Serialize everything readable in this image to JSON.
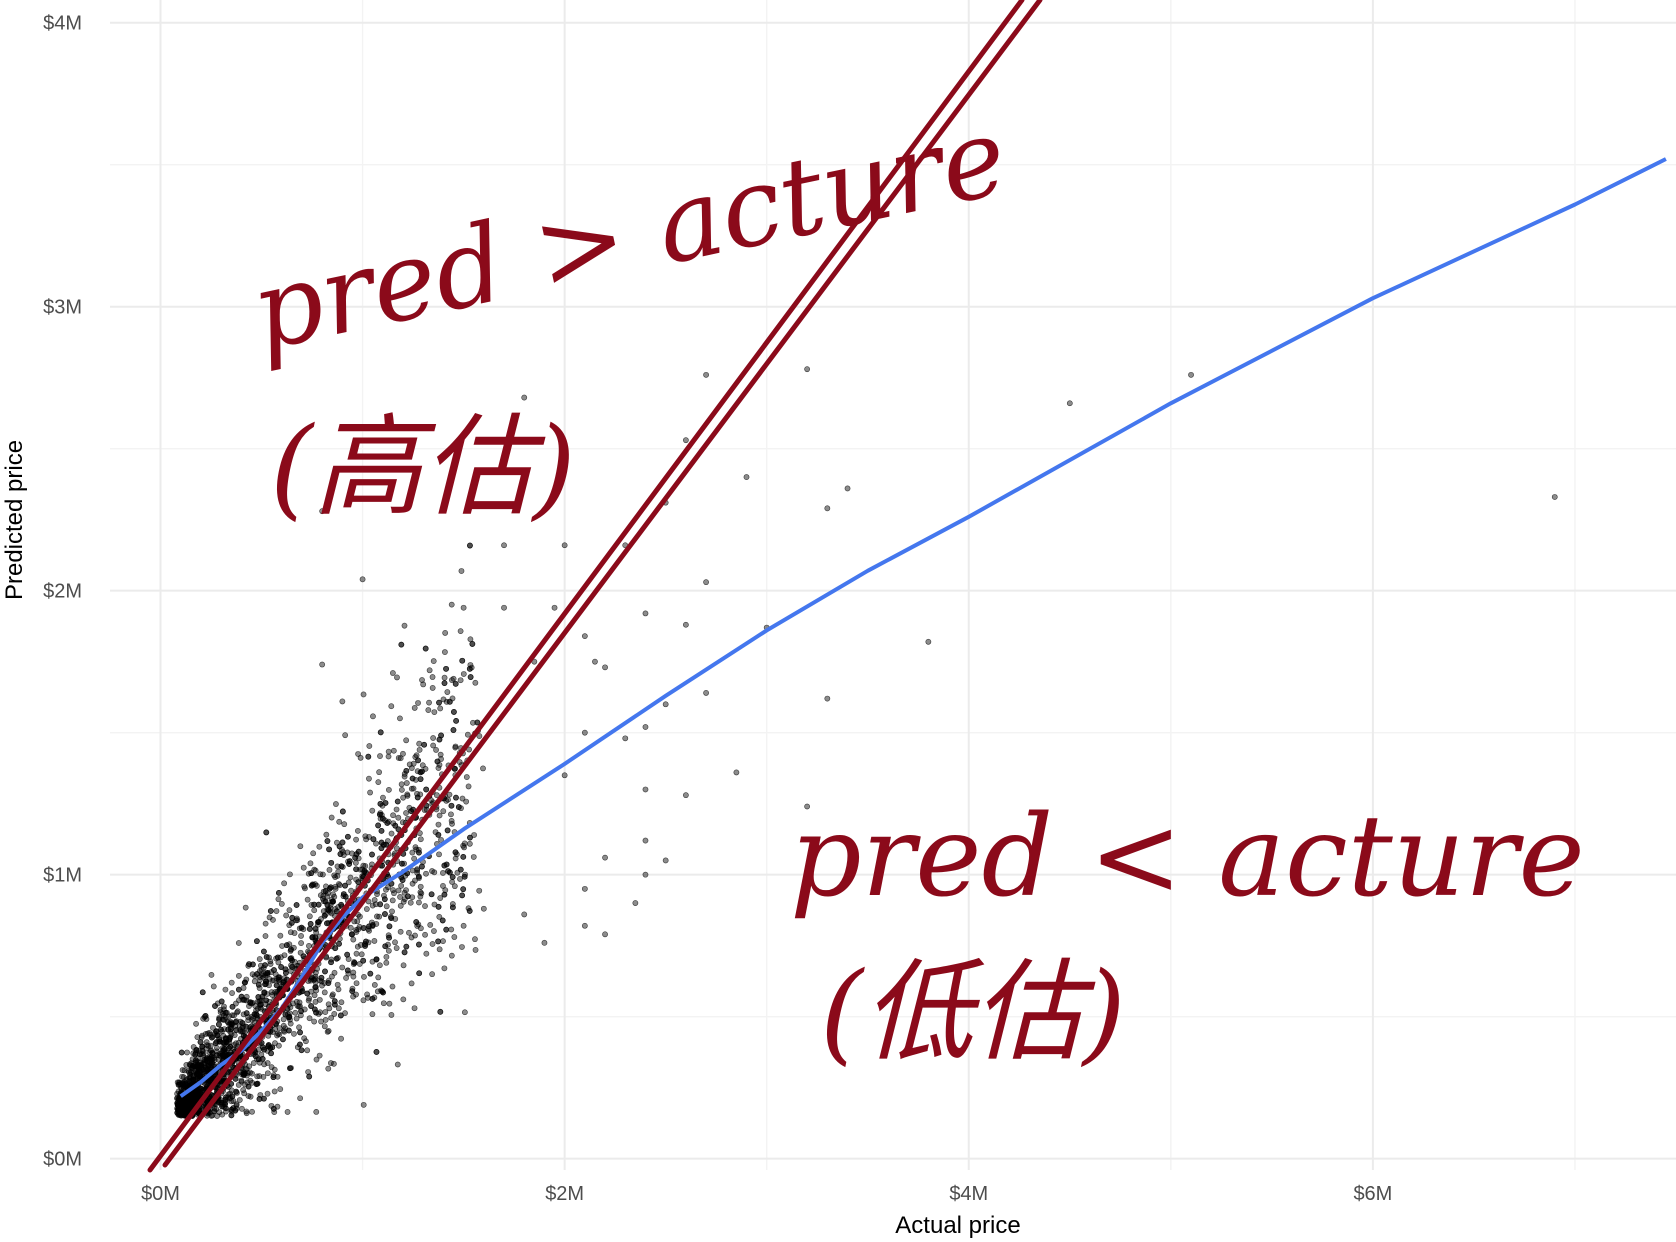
{
  "chart_data": {
    "type": "scatter",
    "title": "",
    "xlabel": "Actual price",
    "ylabel": "Predicted price",
    "xlim": [
      -250000,
      7500000
    ],
    "ylim": [
      -40000,
      4080000
    ],
    "x_ticks": [
      {
        "value": 0,
        "label": "$0M"
      },
      {
        "value": 2000000,
        "label": "$2M"
      },
      {
        "value": 4000000,
        "label": "$4M"
      },
      {
        "value": 6000000,
        "label": "$6M"
      }
    ],
    "y_ticks": [
      {
        "value": 0,
        "label": "$0M"
      },
      {
        "value": 1000000,
        "label": "$1M"
      },
      {
        "value": 2000000,
        "label": "$2M"
      },
      {
        "value": 3000000,
        "label": "$3M"
      },
      {
        "value": 4000000,
        "label": "$4M"
      }
    ],
    "x_minor": [
      1000000,
      3000000,
      5000000,
      7000000
    ],
    "y_minor": [
      500000,
      1500000,
      2500000,
      3500000
    ],
    "grid": true,
    "legend": "none",
    "series": [
      {
        "kind": "points",
        "color": "#000000",
        "opacity": 0.45,
        "points": [
          [
            3200000,
            2780000
          ],
          [
            5100000,
            2760000
          ],
          [
            4500000,
            2660000
          ],
          [
            6900000,
            2330000
          ],
          [
            2700000,
            2760000
          ],
          [
            1800000,
            2680000
          ],
          [
            2600000,
            2530000
          ],
          [
            2900000,
            2400000
          ],
          [
            3400000,
            2360000
          ],
          [
            3300000,
            2290000
          ],
          [
            2500000,
            2310000
          ],
          [
            1600000,
            2300000
          ],
          [
            800000,
            2280000
          ],
          [
            1700000,
            2160000
          ],
          [
            2000000,
            2160000
          ],
          [
            2300000,
            2160000
          ],
          [
            1000000,
            2040000
          ],
          [
            2700000,
            2030000
          ],
          [
            1500000,
            1940000
          ],
          [
            1700000,
            1940000
          ],
          [
            1950000,
            1940000
          ],
          [
            2100000,
            1840000
          ],
          [
            2400000,
            1920000
          ],
          [
            2600000,
            1880000
          ],
          [
            3000000,
            1870000
          ],
          [
            3800000,
            1820000
          ],
          [
            800000,
            1740000
          ],
          [
            1150000,
            1710000
          ],
          [
            1300000,
            1670000
          ],
          [
            900000,
            1610000
          ],
          [
            1850000,
            1750000
          ],
          [
            2150000,
            1750000
          ],
          [
            2200000,
            1730000
          ],
          [
            2500000,
            1600000
          ],
          [
            2700000,
            1640000
          ],
          [
            3300000,
            1620000
          ],
          [
            2100000,
            1500000
          ],
          [
            2300000,
            1480000
          ],
          [
            2400000,
            1520000
          ],
          [
            2000000,
            1350000
          ],
          [
            2850000,
            1360000
          ],
          [
            2400000,
            1300000
          ],
          [
            2600000,
            1280000
          ],
          [
            3200000,
            1240000
          ],
          [
            2400000,
            1120000
          ],
          [
            2200000,
            1060000
          ],
          [
            2100000,
            950000
          ],
          [
            2350000,
            900000
          ],
          [
            2500000,
            1050000
          ],
          [
            2400000,
            1000000
          ],
          [
            1800000,
            860000
          ],
          [
            2100000,
            820000
          ],
          [
            2200000,
            790000
          ],
          [
            1900000,
            760000
          ],
          [
            1500000,
            820000
          ],
          [
            1600000,
            880000
          ]
        ]
      },
      {
        "kind": "loess",
        "color": "#4477ee",
        "points": [
          [
            100000,
            220000
          ],
          [
            200000,
            270000
          ],
          [
            300000,
            330000
          ],
          [
            400000,
            380000
          ],
          [
            500000,
            450000
          ],
          [
            600000,
            530000
          ],
          [
            700000,
            640000
          ],
          [
            800000,
            760000
          ],
          [
            900000,
            850000
          ],
          [
            1000000,
            920000
          ],
          [
            1200000,
            1010000
          ],
          [
            1500000,
            1160000
          ],
          [
            2000000,
            1390000
          ],
          [
            2500000,
            1630000
          ],
          [
            3000000,
            1860000
          ],
          [
            3500000,
            2070000
          ],
          [
            4000000,
            2260000
          ],
          [
            5000000,
            2660000
          ],
          [
            6000000,
            3030000
          ],
          [
            7000000,
            3360000
          ],
          [
            7450000,
            3520000
          ]
        ]
      }
    ],
    "cluster": {
      "center": [
        500000,
        500000
      ],
      "count": 2600
    }
  },
  "annotations": {
    "upper_line1": "pred > acture",
    "upper_line2": "(高估)",
    "lower_line1": "pred < acture",
    "lower_line2": "(低估)",
    "color": "#8b0a1a"
  }
}
